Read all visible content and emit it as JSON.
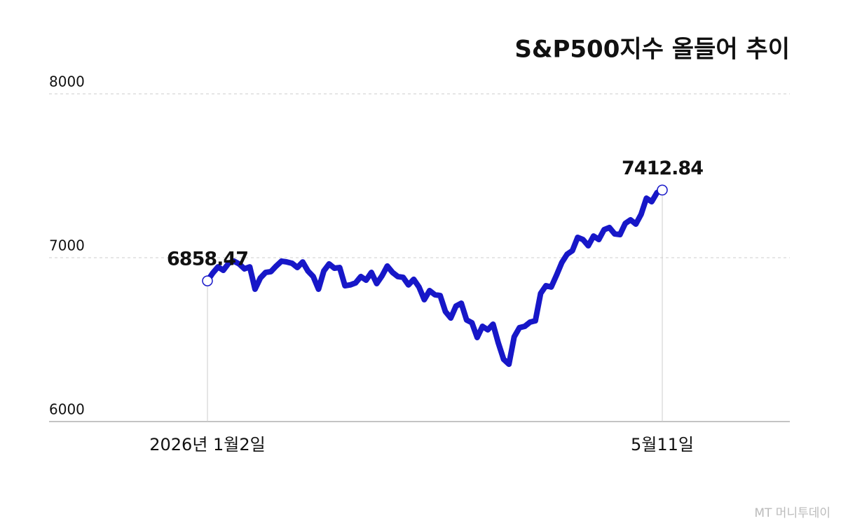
{
  "chart_data": {
    "type": "line",
    "title": "S&P500지수 올들어 추이",
    "watermark": "MT 머니투데이",
    "categories": [
      "2026년 1월2일",
      null,
      null,
      null,
      null,
      null,
      null,
      null,
      null,
      null,
      null,
      null,
      null,
      null,
      null,
      null,
      null,
      null,
      null,
      null,
      null,
      null,
      null,
      null,
      null,
      null,
      null,
      null,
      null,
      null,
      null,
      null,
      null,
      null,
      null,
      null,
      null,
      null,
      null,
      null,
      null,
      null,
      null,
      null,
      null,
      null,
      null,
      null,
      null,
      null,
      null,
      null,
      null,
      null,
      null,
      null,
      null,
      null,
      null,
      null,
      null,
      null,
      null,
      null,
      null,
      null,
      null,
      null,
      null,
      null,
      null,
      null,
      null,
      null,
      null,
      null,
      null,
      null,
      null,
      null,
      null,
      null,
      null,
      null,
      null,
      null,
      "5월11일"
    ],
    "series": [
      {
        "name": "S&P500",
        "color": "#1717c8",
        "values": [
          6858.47,
          6906,
          6944,
          6923,
          6966,
          6979,
          6962,
          6932,
          6944,
          6808,
          6876,
          6910,
          6915,
          6949,
          6979,
          6974,
          6966,
          6940,
          6974,
          6919,
          6885,
          6808,
          6919,
          6962,
          6936,
          6940,
          6829,
          6834,
          6846,
          6885,
          6863,
          6910,
          6842,
          6889,
          6949,
          6910,
          6885,
          6880,
          6834,
          6868,
          6821,
          6744,
          6799,
          6774,
          6769,
          6671,
          6632,
          6705,
          6722,
          6620,
          6603,
          6513,
          6581,
          6560,
          6594,
          6479,
          6380,
          6350,
          6517,
          6573,
          6581,
          6607,
          6615,
          6782,
          6829,
          6821,
          6893,
          6970,
          7021,
          7043,
          7124,
          7111,
          7073,
          7132,
          7111,
          7171,
          7184,
          7145,
          7141,
          7209,
          7231,
          7205,
          7265,
          7363,
          7342,
          7397,
          7412.84
        ]
      }
    ],
    "ylim": [
      6000,
      8000
    ],
    "yticks": [
      6000,
      7000,
      8000
    ],
    "grid": true
  }
}
